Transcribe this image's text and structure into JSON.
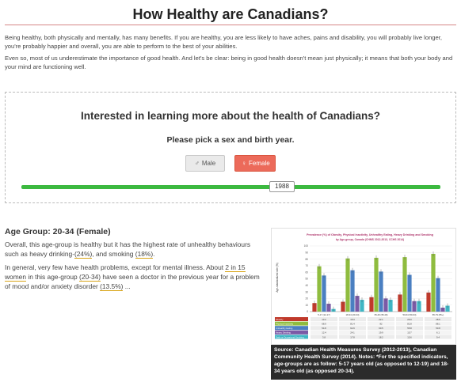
{
  "page": {
    "title": "How Healthy are Canadians?"
  },
  "intro": {
    "p1": "Being healthy, both physically and mentally, has many benefits. If you are healthy, you are less likely to have aches, pains and disability, you will probably live longer, you're probably happier and overall, you are able to perform to the best of your abilities.",
    "p2": "Even so, most of us underestimate the importance of good health. And let's be clear: being in good health doesn't mean just physically; it means that both your body and your mind are functioning well."
  },
  "selector": {
    "question": "Interested in learning more about the health of Canadians?",
    "prompt": "Please pick a sex and birth year.",
    "male_label": "Male",
    "female_label": "Female",
    "male_icon": "male-symbol-icon",
    "female_icon": "female-symbol-icon",
    "year": "1988",
    "accent_color": "#3cb940",
    "female_color": "#ec6a5a"
  },
  "result": {
    "title": "Age Group: 20-34 (Female)",
    "p1_a": "Overall, this age-group is healthy but it has the highest rate of unhealthy behaviours such as heavy drinking-",
    "p1_v1": "(24%)",
    "p1_b": ", and smoking ",
    "p1_v2": "(18%)",
    "p1_c": ".",
    "p2_a": "In general, very few have health problems, except for mental illness. About ",
    "p2_v1": "2 in 15 women",
    "p2_b": " in this age-group ",
    "p2_v2": "(20-34)",
    "p2_c": " have seen a doctor in the previous year for a problem of mood and/or anxiety disorder ",
    "p2_v3": "(13.5%)",
    "p2_d": " ..."
  },
  "chart_data": {
    "type": "bar",
    "title": "Prevalence (%) of Obesity, Physical Inactivity, Unhealthy Eating, Heavy Drinking and Smoking",
    "subtitle": "by Age-group, Canada (CHMS 2012-2013, CCHS 2014)",
    "ylabel": "Age-standardized rate (%)",
    "ylim": [
      0,
      100
    ],
    "yticks": [
      0,
      10,
      20,
      30,
      40,
      50,
      60,
      70,
      80,
      90,
      100
    ],
    "categories": [
      "5-17 (12-17)",
      "18-34 (20-34)",
      "35-49 (35-49)",
      "50-64 (50-64)",
      "65-79 (65+)"
    ],
    "series": [
      {
        "name": "Obesity",
        "color": "#c0392b",
        "values": [
          13,
          15,
          22,
          26,
          29
        ]
      },
      {
        "name": "Physical Inactivity",
        "color": "#8fbc3f",
        "values": [
          69,
          81,
          82,
          83,
          88
        ]
      },
      {
        "name": "Unhealthy Eating",
        "color": "#4a7fc1",
        "values": [
          55,
          63,
          61,
          56,
          51
        ]
      },
      {
        "name": "Heavy Drinking",
        "color": "#7b5aa6",
        "values": [
          12,
          24,
          20,
          16,
          6
        ]
      },
      {
        "name": "Smoking (Daily or Occasional)",
        "color": "#3fb6c4",
        "values": [
          4,
          18,
          18,
          16,
          9
        ]
      }
    ],
    "table": [
      [
        "Obesity",
        "13.2",
        "15.3",
        "22.1",
        "26.0",
        "28.6"
      ],
      [
        "Physical Inactivity",
        "68.9",
        "81.4",
        "82",
        "82.8",
        "88.1"
      ],
      [
        "Unhealthy Eating",
        "54.8",
        "62.9",
        "60.5",
        "55.8",
        "50.8"
      ],
      [
        "Heavy Drinking",
        "12.4",
        "24.1",
        "19.9",
        "15.7",
        "6.1"
      ],
      [
        "Daily or Occasional Smoking",
        "3.8",
        "17.8",
        "18.2",
        "15.6",
        "9.4"
      ]
    ]
  },
  "caption": {
    "text": "Source: Canadian Health Measures Survey (2012-2013), Canadian Community Health Survey (2014). Notes: *For the specified indicators, age-groups are as follow: 5-17 years old (as opposed to 12-19) and 18-34 years old (as opposed 20-34)."
  }
}
